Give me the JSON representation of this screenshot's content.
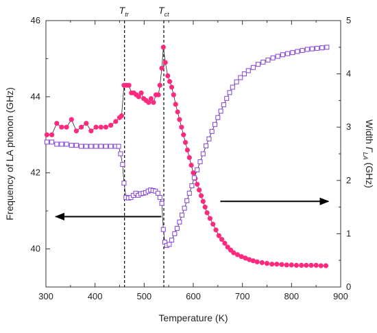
{
  "chart_data": {
    "type": "scatter",
    "title": "",
    "xlabel": "Temperature (K)",
    "ylabel_left": "Frequency of LA phonon (GHz)",
    "ylabel_right": {
      "prefix": "Width ",
      "symbol": "Γ",
      "subscript": "LA",
      "suffix": " (GHz)"
    },
    "xlim": [
      300,
      900
    ],
    "ylim_left": [
      39,
      46
    ],
    "ylim_right": [
      0,
      5
    ],
    "x_ticks": [
      300,
      400,
      500,
      600,
      700,
      800,
      900
    ],
    "y_left_ticks": [
      40,
      42,
      44,
      46
    ],
    "y_right_ticks": [
      0,
      1,
      2,
      3,
      4,
      5
    ],
    "grid": false,
    "legend": "none",
    "colors": {
      "frequency": "#ff2a7f",
      "width": "#8c4fd8",
      "axis": "#333333",
      "arrow": "#000000"
    },
    "series": [
      {
        "axis": "left",
        "marker": "filled-circle",
        "points": [
          [
            302,
            43.0
          ],
          [
            312,
            43.0
          ],
          [
            322,
            43.3
          ],
          [
            332,
            43.2
          ],
          [
            342,
            43.2
          ],
          [
            352,
            43.4
          ],
          [
            362,
            43.1
          ],
          [
            372,
            43.2
          ],
          [
            382,
            43.3
          ],
          [
            392,
            43.1
          ],
          [
            402,
            43.2
          ],
          [
            412,
            43.2
          ],
          [
            422,
            43.2
          ],
          [
            432,
            43.25
          ],
          [
            442,
            43.35
          ],
          [
            450,
            43.45
          ],
          [
            454,
            43.5
          ],
          [
            459,
            44.3
          ],
          [
            464,
            44.3
          ],
          [
            469,
            44.3
          ],
          [
            474,
            44.1
          ],
          [
            479,
            44.1
          ],
          [
            484,
            44.05
          ],
          [
            489,
            44.0
          ],
          [
            494,
            44.1
          ],
          [
            499,
            43.95
          ],
          [
            504,
            43.9
          ],
          [
            509,
            43.85
          ],
          [
            514,
            43.95
          ],
          [
            519,
            43.85
          ],
          [
            524,
            44.05
          ],
          [
            529,
            44.05
          ],
          [
            532,
            44.3
          ],
          [
            536,
            44.75
          ],
          [
            539,
            45.3
          ],
          [
            543,
            44.9
          ],
          [
            548,
            44.55
          ],
          [
            552,
            44.4
          ],
          [
            556,
            44.25
          ],
          [
            560,
            44.05
          ],
          [
            564,
            43.8
          ],
          [
            568,
            43.6
          ],
          [
            572,
            43.4
          ],
          [
            576,
            43.2
          ],
          [
            580,
            43.0
          ],
          [
            584,
            42.8
          ],
          [
            588,
            42.6
          ],
          [
            592,
            42.4
          ],
          [
            596,
            42.2
          ],
          [
            600,
            42.0
          ],
          [
            604,
            41.85
          ],
          [
            608,
            41.7
          ],
          [
            612,
            41.55
          ],
          [
            616,
            41.4
          ],
          [
            620,
            41.25
          ],
          [
            624,
            41.1
          ],
          [
            628,
            40.95
          ],
          [
            634,
            40.8
          ],
          [
            640,
            40.65
          ],
          [
            646,
            40.5
          ],
          [
            652,
            40.35
          ],
          [
            658,
            40.25
          ],
          [
            664,
            40.15
          ],
          [
            670,
            40.05
          ],
          [
            676,
            39.97
          ],
          [
            682,
            39.9
          ],
          [
            690,
            39.85
          ],
          [
            698,
            39.8
          ],
          [
            706,
            39.76
          ],
          [
            714,
            39.72
          ],
          [
            722,
            39.69
          ],
          [
            730,
            39.66
          ],
          [
            740,
            39.64
          ],
          [
            750,
            39.62
          ],
          [
            760,
            39.6
          ],
          [
            770,
            39.6
          ],
          [
            780,
            39.59
          ],
          [
            790,
            39.58
          ],
          [
            800,
            39.58
          ],
          [
            810,
            39.57
          ],
          [
            820,
            39.57
          ],
          [
            830,
            39.57
          ],
          [
            840,
            39.57
          ],
          [
            850,
            39.57
          ],
          [
            860,
            39.56
          ],
          [
            870,
            39.56
          ]
        ]
      },
      {
        "axis": "right",
        "marker": "open-square",
        "points": [
          [
            302,
            2.72
          ],
          [
            312,
            2.72
          ],
          [
            322,
            2.68
          ],
          [
            332,
            2.68
          ],
          [
            342,
            2.68
          ],
          [
            352,
            2.66
          ],
          [
            362,
            2.66
          ],
          [
            372,
            2.64
          ],
          [
            382,
            2.64
          ],
          [
            392,
            2.64
          ],
          [
            402,
            2.64
          ],
          [
            412,
            2.64
          ],
          [
            422,
            2.64
          ],
          [
            432,
            2.64
          ],
          [
            442,
            2.64
          ],
          [
            448,
            2.64
          ],
          [
            452,
            2.5
          ],
          [
            456,
            2.3
          ],
          [
            459,
            1.95
          ],
          [
            463,
            1.68
          ],
          [
            468,
            1.67
          ],
          [
            473,
            1.68
          ],
          [
            478,
            1.72
          ],
          [
            483,
            1.76
          ],
          [
            488,
            1.72
          ],
          [
            493,
            1.75
          ],
          [
            498,
            1.76
          ],
          [
            503,
            1.77
          ],
          [
            508,
            1.8
          ],
          [
            513,
            1.82
          ],
          [
            518,
            1.81
          ],
          [
            523,
            1.8
          ],
          [
            528,
            1.76
          ],
          [
            532,
            1.68
          ],
          [
            536,
            1.57
          ],
          [
            539,
            1.08
          ],
          [
            542,
            0.84
          ],
          [
            546,
            0.78
          ],
          [
            551,
            0.8
          ],
          [
            556,
            0.88
          ],
          [
            562,
            1.0
          ],
          [
            567,
            1.1
          ],
          [
            572,
            1.22
          ],
          [
            577,
            1.35
          ],
          [
            582,
            1.48
          ],
          [
            587,
            1.62
          ],
          [
            592,
            1.76
          ],
          [
            597,
            1.9
          ],
          [
            602,
            2.05
          ],
          [
            608,
            2.2
          ],
          [
            614,
            2.35
          ],
          [
            620,
            2.5
          ],
          [
            626,
            2.65
          ],
          [
            632,
            2.78
          ],
          [
            638,
            2.92
          ],
          [
            644,
            3.05
          ],
          [
            650,
            3.18
          ],
          [
            656,
            3.3
          ],
          [
            662,
            3.42
          ],
          [
            668,
            3.54
          ],
          [
            674,
            3.65
          ],
          [
            680,
            3.75
          ],
          [
            688,
            3.85
          ],
          [
            696,
            3.93
          ],
          [
            704,
            4.0
          ],
          [
            712,
            4.06
          ],
          [
            722,
            4.12
          ],
          [
            732,
            4.18
          ],
          [
            742,
            4.22
          ],
          [
            752,
            4.26
          ],
          [
            762,
            4.3
          ],
          [
            772,
            4.33
          ],
          [
            782,
            4.36
          ],
          [
            792,
            4.38
          ],
          [
            802,
            4.4
          ],
          [
            812,
            4.42
          ],
          [
            822,
            4.44
          ],
          [
            832,
            4.46
          ],
          [
            842,
            4.47
          ],
          [
            852,
            4.48
          ],
          [
            862,
            4.49
          ],
          [
            872,
            4.5
          ]
        ]
      }
    ],
    "annotations": [
      {
        "label": "T",
        "subscript": "tr",
        "x": 460
      },
      {
        "label": "T",
        "subscript": "ct",
        "x": 540
      }
    ],
    "arrows": [
      {
        "axis": "left",
        "y": 40.85,
        "from_x": 535,
        "to_x": 320
      },
      {
        "axis": "left",
        "y": 41.25,
        "from_x": 655,
        "to_x": 875
      }
    ]
  }
}
